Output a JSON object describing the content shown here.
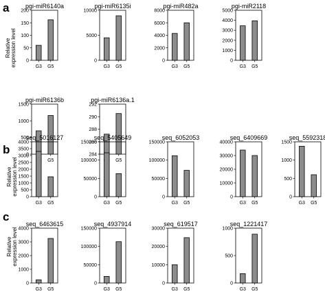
{
  "panels": [
    {
      "letter": "a",
      "ylabel": [
        "Relative",
        "expression level"
      ]
    },
    {
      "letter": "b",
      "ylabel": [
        "Relative",
        "expression level"
      ]
    },
    {
      "letter": "c",
      "ylabel": [
        "Relative",
        "expression level"
      ]
    }
  ],
  "chart_data": [
    {
      "type": "bar",
      "panel": "a",
      "title": "pgi-miR6140a",
      "categories": [
        "G3",
        "G5"
      ],
      "values": [
        60,
        162
      ],
      "ylim": [
        0,
        200
      ],
      "yticks": [
        0,
        50,
        100,
        150,
        200
      ]
    },
    {
      "type": "bar",
      "panel": "a",
      "title": "pgi-miR6135i",
      "categories": [
        "G3",
        "G5"
      ],
      "values": [
        4500,
        8900
      ],
      "ylim": [
        0,
        10000
      ],
      "yticks": [
        0,
        5000,
        10000
      ]
    },
    {
      "type": "bar",
      "panel": "a",
      "title": "pgi-miR482a",
      "categories": [
        "G3",
        "G5"
      ],
      "values": [
        4300,
        6000
      ],
      "ylim": [
        0,
        8000
      ],
      "yticks": [
        0,
        2000,
        4000,
        6000,
        8000
      ]
    },
    {
      "type": "bar",
      "panel": "a",
      "title": "pgi-miR2118",
      "categories": [
        "G3",
        "G5"
      ],
      "values": [
        3450,
        3950
      ],
      "ylim": [
        0,
        5000
      ],
      "yticks": [
        0,
        1000,
        2000,
        3000,
        4000,
        5000
      ]
    },
    {
      "type": "bar",
      "panel": "a",
      "title": "pgi-miR6136b",
      "categories": [
        "G3",
        "G5"
      ],
      "values": [
        700,
        1160
      ],
      "ylim": [
        0,
        1500
      ],
      "yticks": [
        0,
        500,
        1000,
        1500
      ]
    },
    {
      "type": "bar",
      "panel": "a",
      "title": "pgi-miR6136a.1",
      "categories": [
        "G3",
        "G5"
      ],
      "values": [
        287.2,
        290.5
      ],
      "ylim": [
        284,
        292
      ],
      "yticks": [
        284,
        286,
        288,
        290,
        292
      ]
    },
    {
      "type": "bar",
      "panel": "b",
      "title": "seq_5016127",
      "categories": [
        "G3",
        "G5"
      ],
      "values": [
        3300,
        1450
      ],
      "ylim": [
        0,
        4000
      ],
      "yticks": [
        0,
        500,
        1000,
        1500,
        2000,
        2500,
        3000,
        3500,
        4000
      ]
    },
    {
      "type": "bar",
      "panel": "b",
      "title": "seq_5405649",
      "categories": [
        "G3",
        "G5"
      ],
      "values": [
        120000,
        63000
      ],
      "ylim": [
        0,
        150000
      ],
      "yticks": [
        0,
        50000,
        100000,
        150000
      ]
    },
    {
      "type": "bar",
      "panel": "b",
      "title": "seq_6052053",
      "categories": [
        "G3",
        "G5"
      ],
      "values": [
        112000,
        72000
      ],
      "ylim": [
        0,
        150000
      ],
      "yticks": [
        0,
        50000,
        100000,
        150000
      ]
    },
    {
      "type": "bar",
      "panel": "b",
      "title": "seq_6409669",
      "categories": [
        "G3",
        "G5"
      ],
      "values": [
        34000,
        30000
      ],
      "ylim": [
        0,
        40000
      ],
      "yticks": [
        0,
        10000,
        20000,
        30000,
        40000
      ]
    },
    {
      "type": "bar",
      "panel": "b",
      "title": "seq_5592318",
      "categories": [
        "G3",
        "G5"
      ],
      "values": [
        1380,
        600
      ],
      "ylim": [
        0,
        1500
      ],
      "yticks": [
        0,
        500,
        1000,
        1500
      ]
    },
    {
      "type": "bar",
      "panel": "c",
      "title": "seq_6463615",
      "categories": [
        "G3",
        "G5"
      ],
      "values": [
        230,
        3250
      ],
      "ylim": [
        0,
        4000
      ],
      "yticks": [
        0,
        1000,
        2000,
        3000,
        4000
      ]
    },
    {
      "type": "bar",
      "panel": "c",
      "title": "seq_4937914",
      "categories": [
        "G3",
        "G5"
      ],
      "values": [
        18000,
        113000
      ],
      "ylim": [
        0,
        150000
      ],
      "yticks": [
        0,
        50000,
        100000,
        150000
      ]
    },
    {
      "type": "bar",
      "panel": "c",
      "title": "seq_619517",
      "categories": [
        "G3",
        "G5"
      ],
      "values": [
        10000,
        24800
      ],
      "ylim": [
        0,
        30000
      ],
      "yticks": [
        0,
        10000,
        20000,
        30000
      ]
    },
    {
      "type": "bar",
      "panel": "c",
      "title": "seq_1221417",
      "categories": [
        "G3",
        "G5"
      ],
      "values": [
        170,
        890
      ],
      "ylim": [
        0,
        1000
      ],
      "yticks": [
        0,
        500,
        1000
      ]
    }
  ]
}
